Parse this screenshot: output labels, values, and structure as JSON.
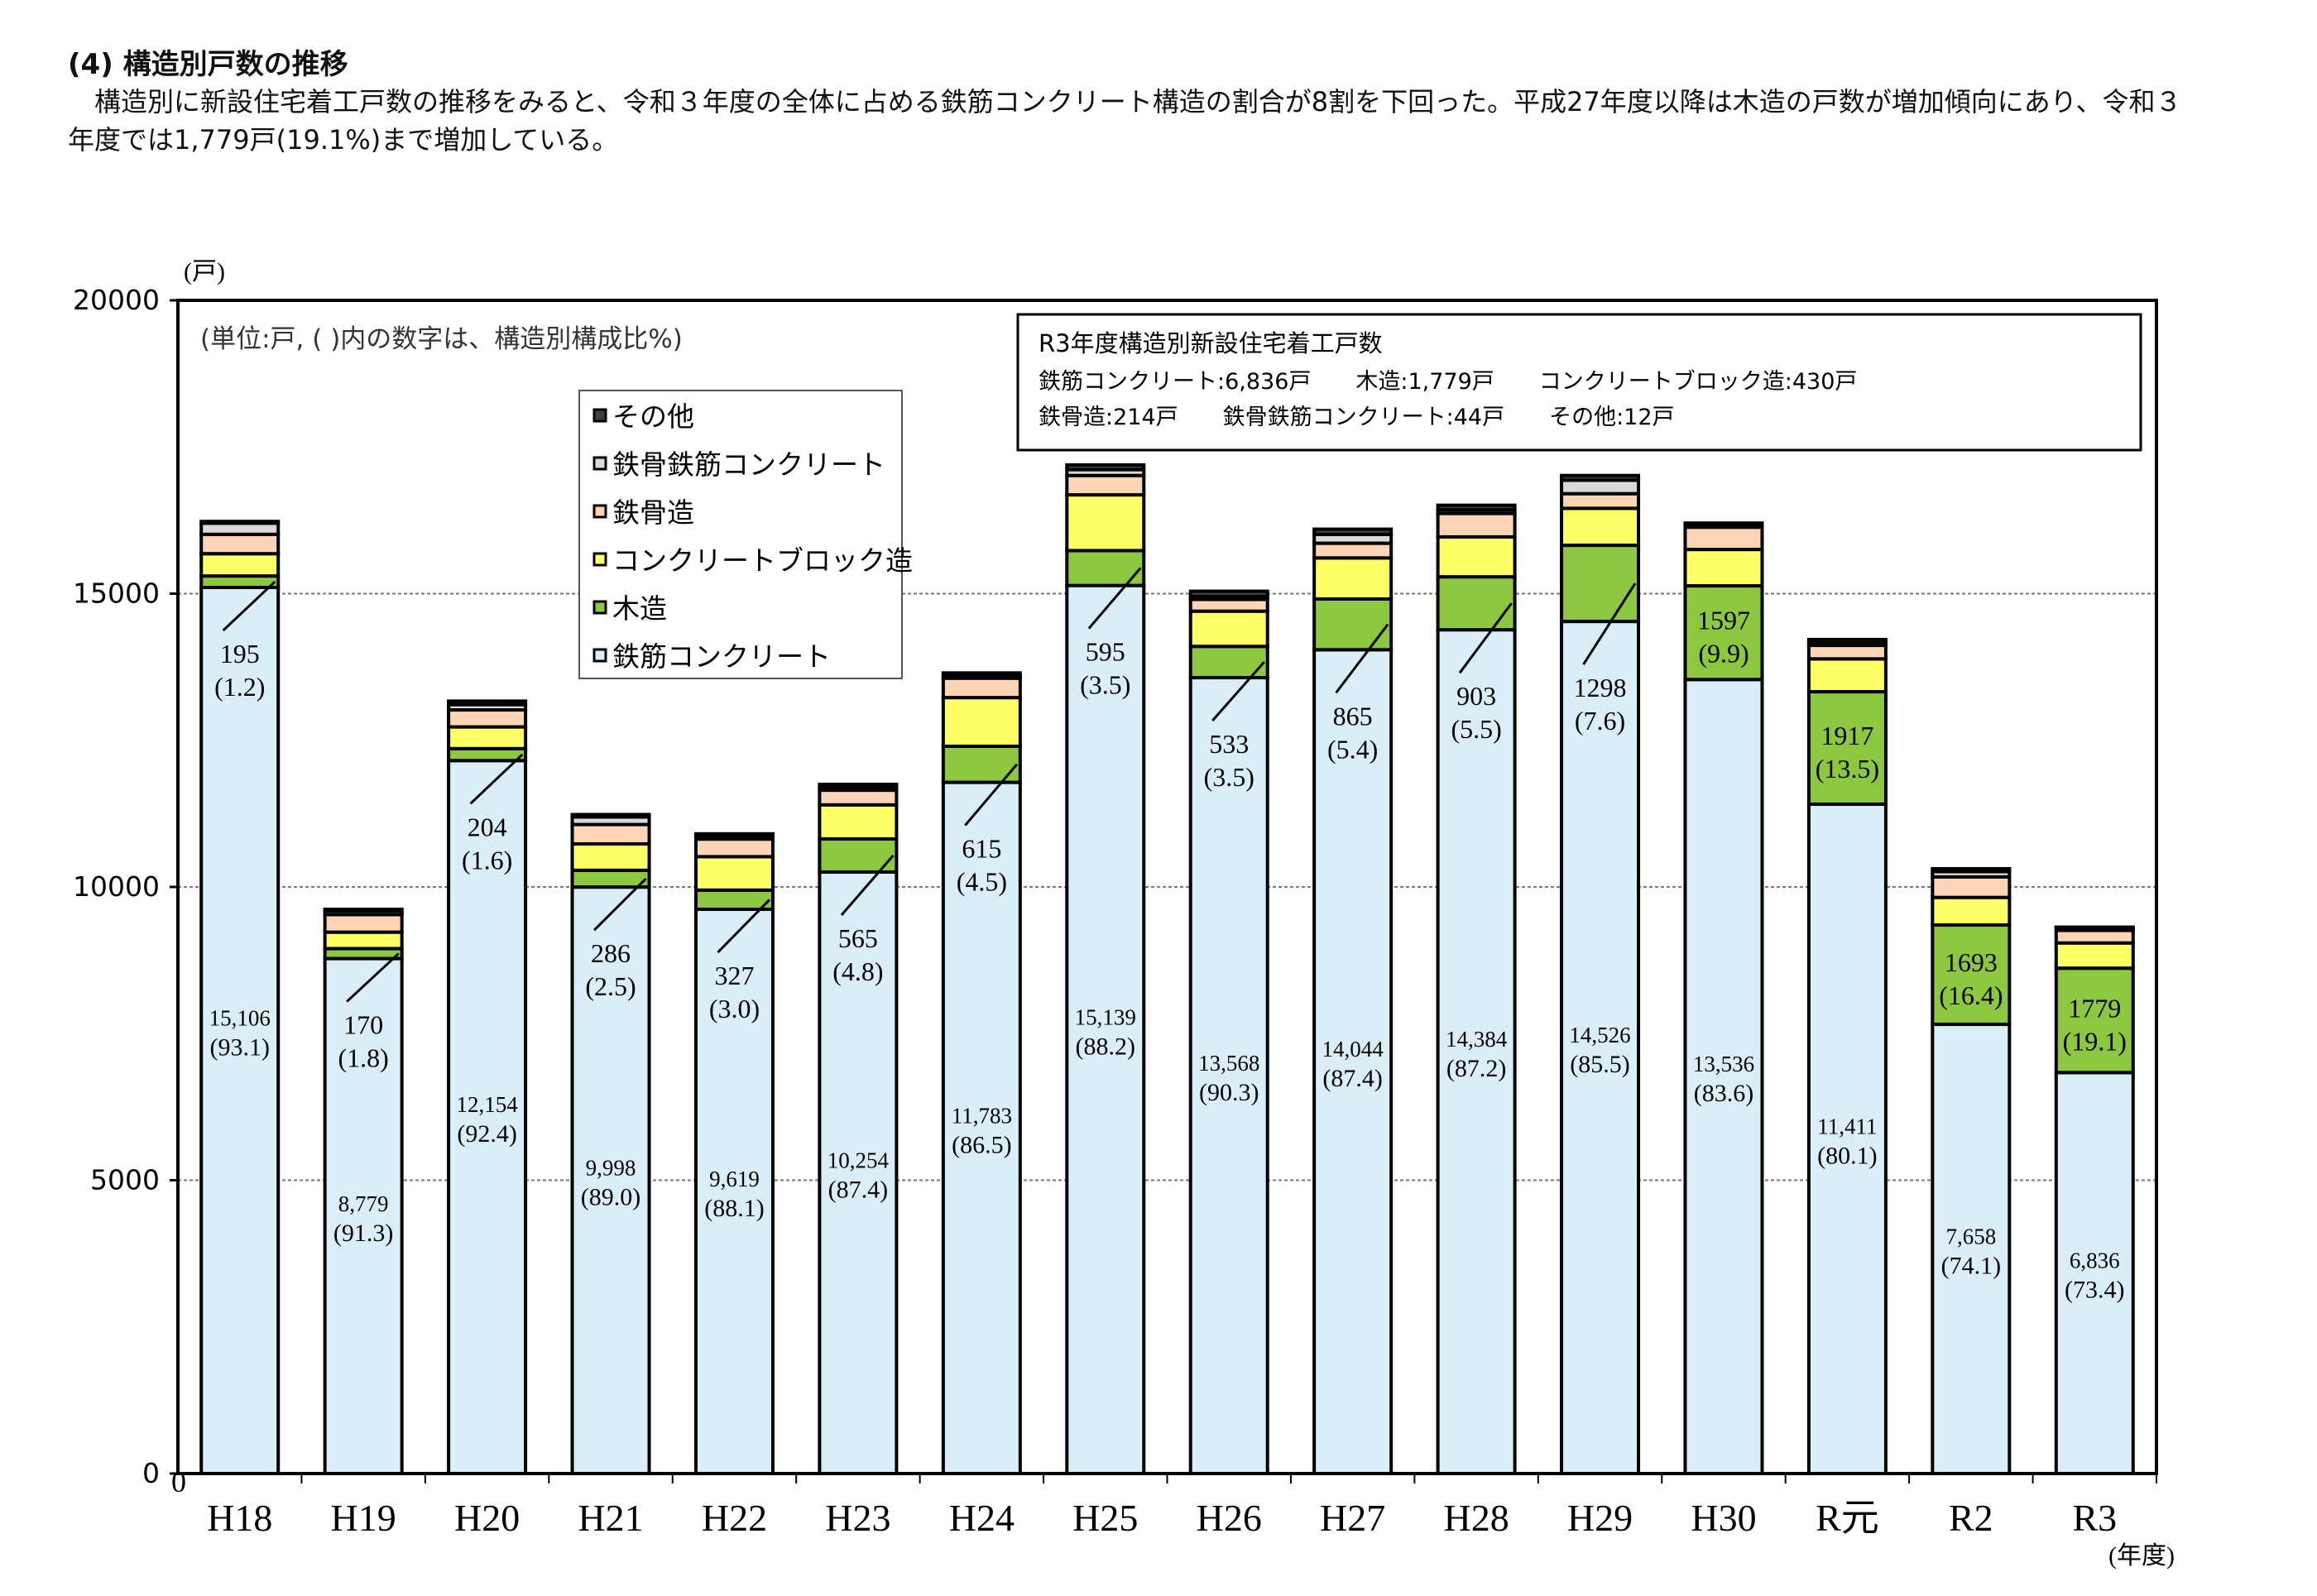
{
  "heading": "(4) 構造別戸数の推移",
  "paragraph": "　構造別に新設住宅着工戸数の推移をみると、令和３年度の全体に占める鉄筋コンクリート構造の割合が8割を下回った。平成27年度以降は木造の戸数が増加傾向にあり、令和３年度では1,779戸(19.1%)まで増加している。",
  "chart_data": {
    "type": "bar",
    "stacked": true,
    "y_unit_label": "(戸)",
    "x_unit_label": "(年度)",
    "note": "(単位:戸, ( )内の数字は、構造別構成比%)",
    "ylim": [
      0,
      20000
    ],
    "yticks": [
      0,
      5000,
      10000,
      15000,
      20000
    ],
    "grid": "horizontal dashed at 5000, 10000, 15000",
    "legend_placement": "top-left inside plot",
    "categories": [
      "H18",
      "H19",
      "H20",
      "H21",
      "H22",
      "H23",
      "H24",
      "H25",
      "H26",
      "H27",
      "H28",
      "H29",
      "H30",
      "R元",
      "R2",
      "R3"
    ],
    "series": [
      {
        "name": "鉄筋コンクリート",
        "color": "#daeef8",
        "values": [
          15106,
          8779,
          12154,
          9998,
          9619,
          10254,
          11783,
          15139,
          13568,
          14044,
          14384,
          14526,
          13536,
          11411,
          7658,
          6836
        ],
        "labels": [
          "15,106",
          "8,779",
          "12,154",
          "9,998",
          "9,619",
          "10,254",
          "11,783",
          "15,139",
          "13,568",
          "14,044",
          "14,384",
          "14,526",
          "13,536",
          "11,411",
          "7,658",
          "6,836"
        ],
        "shares": [
          "(93.1)",
          "(91.3)",
          "(92.4)",
          "(89.0)",
          "(88.1)",
          "(87.4)",
          "(86.5)",
          "(88.2)",
          "(90.3)",
          "(87.4)",
          "(87.2)",
          "(85.5)",
          "(83.6)",
          "(80.1)",
          "(74.1)",
          "(73.4)"
        ]
      },
      {
        "name": "木造",
        "color": "#8dc63f",
        "values": [
          195,
          170,
          204,
          286,
          327,
          565,
          615,
          595,
          533,
          865,
          903,
          1298,
          1597,
          1917,
          1693,
          1779
        ],
        "labels": [
          "195",
          "170",
          "204",
          "286",
          "327",
          "565",
          "615",
          "595",
          "533",
          "865",
          "903",
          "1298",
          "1597",
          "1917",
          "1693",
          "1779"
        ],
        "shares": [
          "(1.2)",
          "(1.8)",
          "(1.6)",
          "(2.5)",
          "(3.0)",
          "(4.8)",
          "(4.5)",
          "(3.5)",
          "(3.5)",
          "(5.4)",
          "(5.5)",
          "(7.6)",
          "(9.9)",
          "(13.5)",
          "(16.4)",
          "(19.1)"
        ]
      },
      {
        "name": "コンクリートブロック造",
        "color": "#ffff66",
        "values": [
          380,
          280,
          370,
          450,
          570,
          580,
          830,
          950,
          600,
          700,
          680,
          630,
          620,
          560,
          470,
          430
        ]
      },
      {
        "name": "鉄骨造",
        "color": "#fbd5b5",
        "values": [
          330,
          300,
          290,
          330,
          300,
          250,
          330,
          330,
          200,
          250,
          400,
          250,
          380,
          230,
          350,
          214
        ]
      },
      {
        "name": "鉄骨鉄筋コンクリート",
        "color": "#d9d9d9",
        "values": [
          190,
          60,
          90,
          130,
          50,
          50,
          50,
          100,
          50,
          150,
          60,
          230,
          20,
          40,
          90,
          44
        ]
      },
      {
        "name": "その他",
        "color": "#404040",
        "values": [
          30,
          30,
          60,
          40,
          40,
          50,
          40,
          80,
          90,
          90,
          80,
          80,
          50,
          60,
          50,
          12
        ]
      }
    ]
  },
  "info_box": {
    "title": "R3年度構造別新設住宅着工戸数",
    "line1": "鉄筋コンクリート:6,836戸　　木造:1,779戸　　コンクリートブロック造:430戸",
    "line2": "鉄骨造:214戸　　鉄骨鉄筋コンクリート:44戸　　その他:12戸"
  }
}
